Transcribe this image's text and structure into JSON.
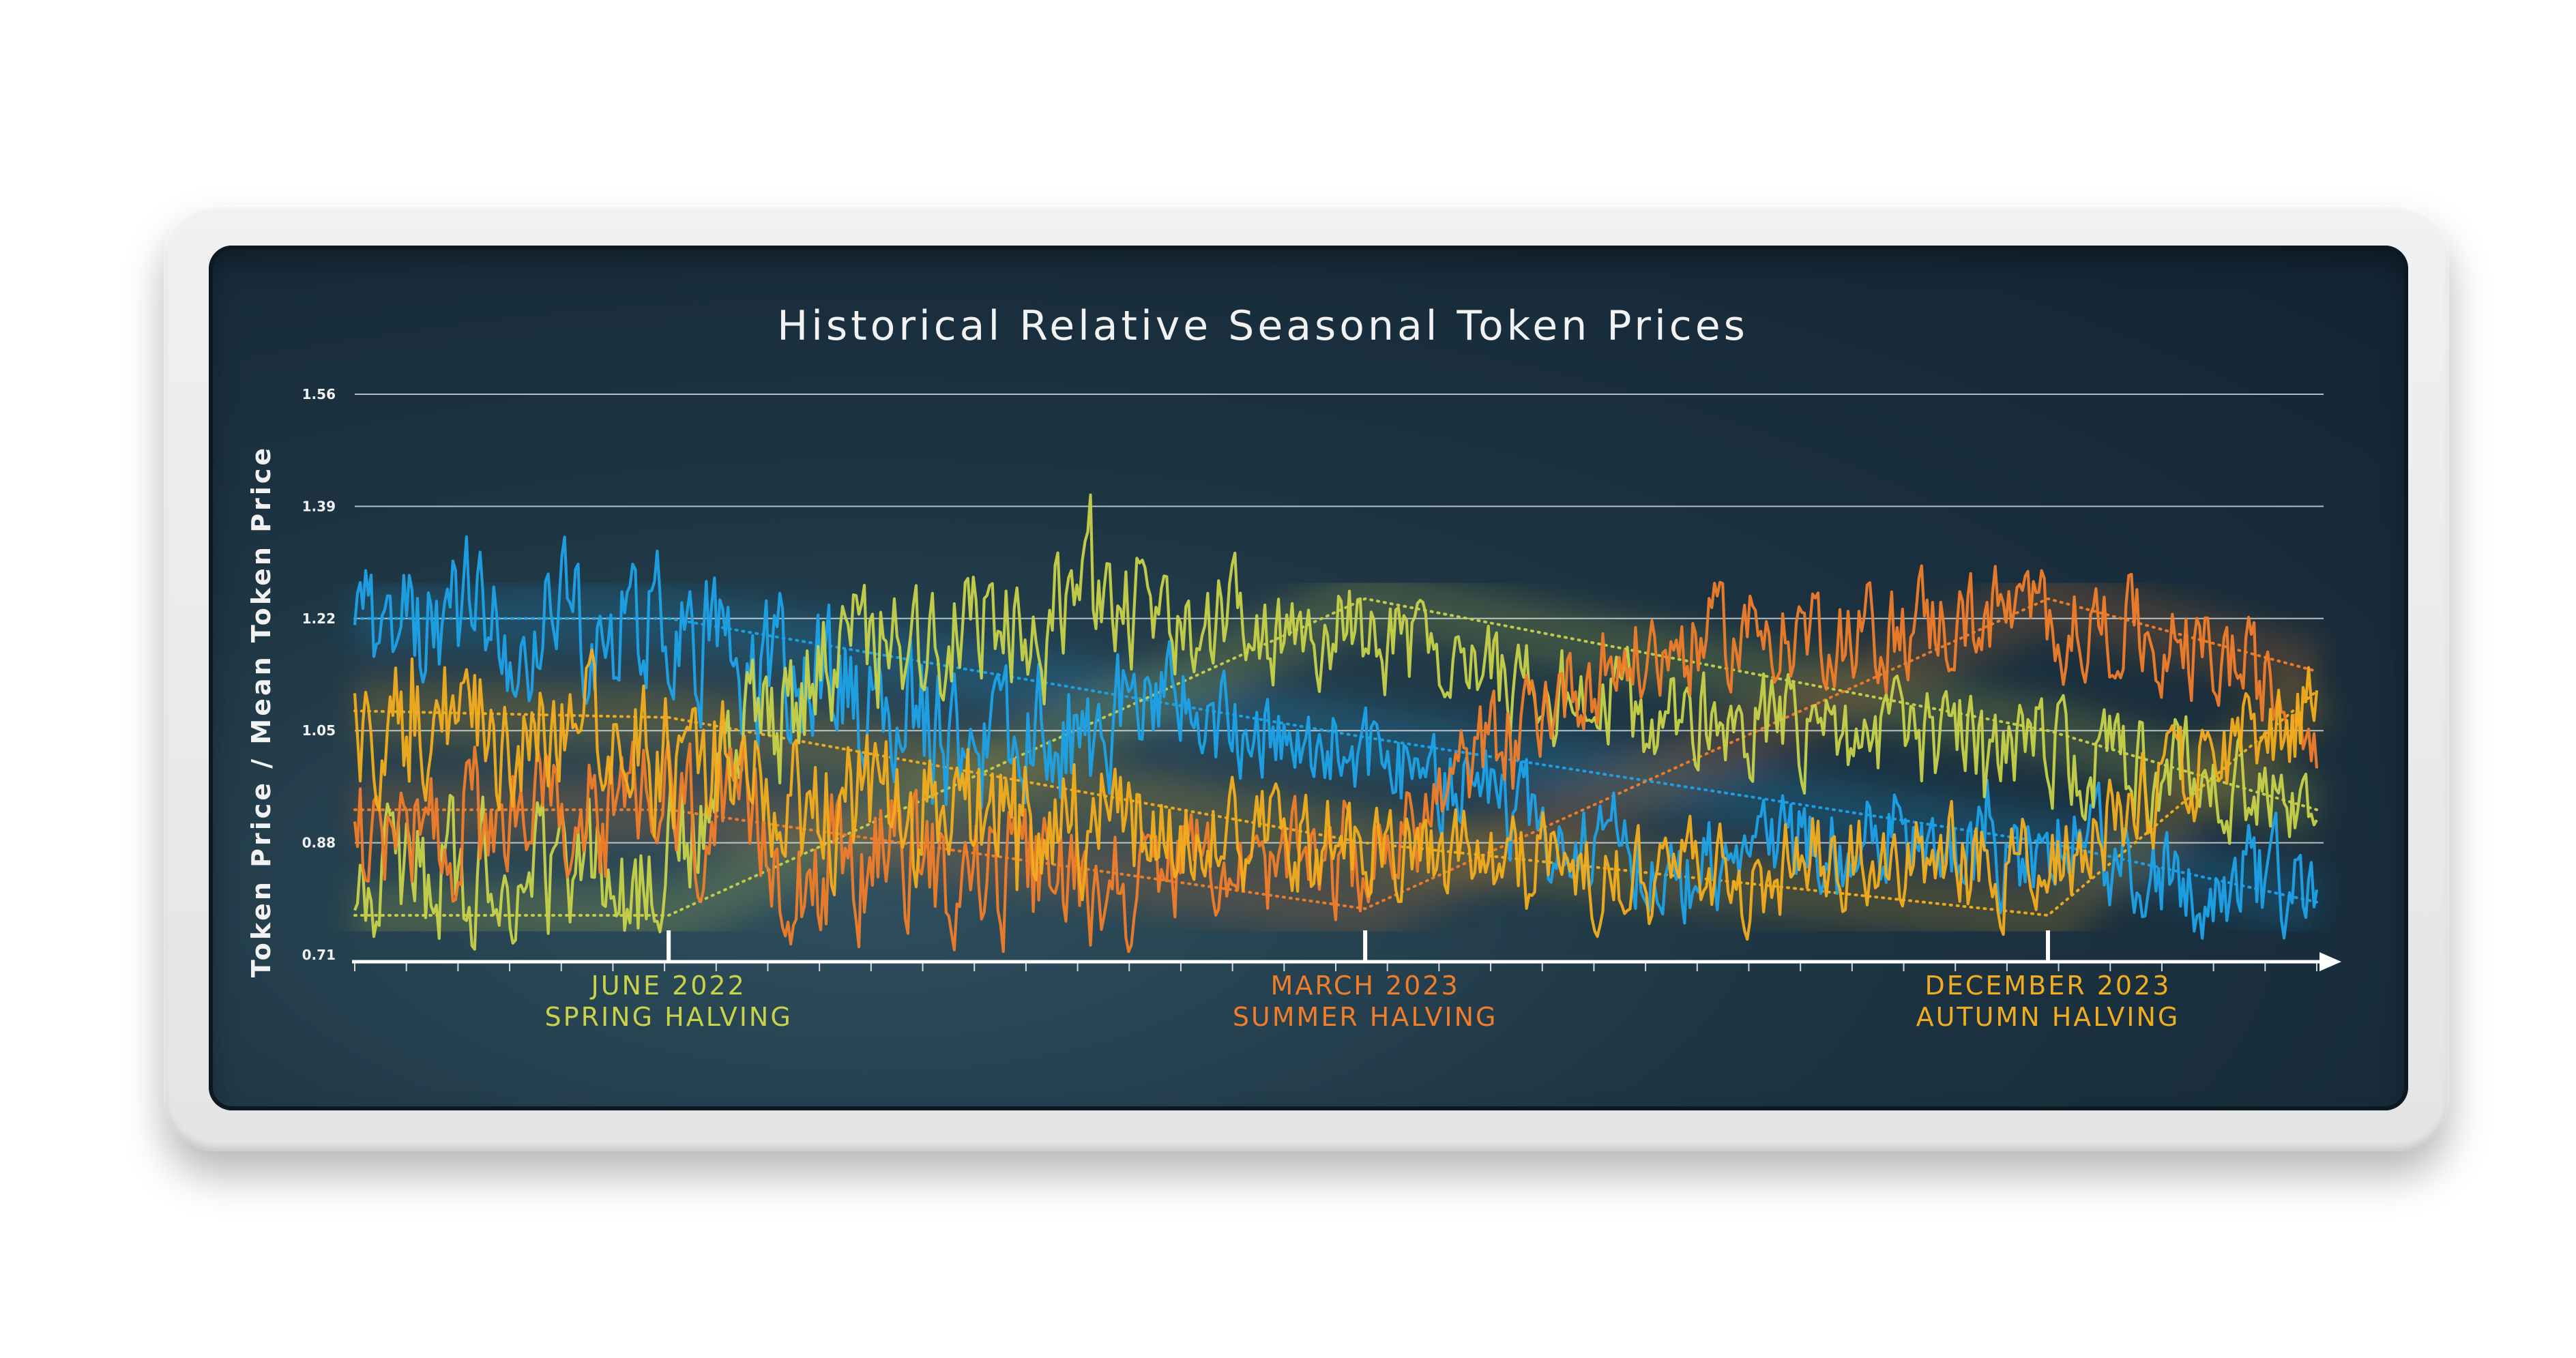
{
  "chart_data": {
    "type": "line",
    "title": "Historical Relative Seasonal Token Prices",
    "ylabel": "Token Price / Mean Token Price",
    "xlabel": "",
    "ylim": [
      0.71,
      1.56
    ],
    "yticks": [
      "0.71",
      "0.88",
      "1.05",
      "1.22",
      "1.39",
      "1.56"
    ],
    "x_range": [
      0,
      100
    ],
    "grid": true,
    "events": [
      {
        "x": 16,
        "date": "JUNE 2022",
        "label": "SPRING HALVING",
        "color": "#c8d24a"
      },
      {
        "x": 51.5,
        "date": "MARCH 2023",
        "label": "SUMMER HALVING",
        "color": "#f07d2a"
      },
      {
        "x": 86.3,
        "date": "DECEMBER 2023",
        "label": "AUTUMN HALVING",
        "color": "#f2ad1e"
      }
    ],
    "series": [
      {
        "color": "#1da2e8",
        "points": [
          [
            0,
            1.14
          ],
          [
            2,
            1.24
          ],
          [
            4,
            1.2
          ],
          [
            6,
            1.23
          ],
          [
            8,
            1.21
          ],
          [
            10,
            1.23
          ],
          [
            12,
            1.2
          ],
          [
            14,
            1.22
          ],
          [
            16,
            1.21
          ],
          [
            18,
            1.17
          ],
          [
            20,
            1.14
          ],
          [
            22,
            1.13
          ],
          [
            24,
            1.12
          ],
          [
            26,
            1.08
          ],
          [
            28,
            1.1
          ],
          [
            30,
            1.02
          ],
          [
            32,
            1.03
          ],
          [
            34,
            1.05
          ],
          [
            36,
            1.04
          ],
          [
            38,
            1.06
          ],
          [
            40,
            1.09
          ],
          [
            42,
            1.1
          ],
          [
            44,
            1.05
          ],
          [
            46,
            1.03
          ],
          [
            48,
            1.05
          ],
          [
            50,
            1.03
          ],
          [
            52,
            1.0
          ],
          [
            54,
            0.98
          ],
          [
            56,
            0.96
          ],
          [
            58,
            0.94
          ],
          [
            60,
            0.91
          ],
          [
            62,
            0.89
          ],
          [
            64,
            0.88
          ],
          [
            66,
            0.86
          ],
          [
            68,
            0.84
          ],
          [
            70,
            0.86
          ],
          [
            72,
            0.88
          ],
          [
            74,
            0.89
          ],
          [
            76,
            0.87
          ],
          [
            78,
            0.9
          ],
          [
            80,
            0.88
          ],
          [
            82,
            0.87
          ],
          [
            84,
            0.85
          ],
          [
            86,
            0.88
          ],
          [
            88,
            0.87
          ],
          [
            90,
            0.86
          ],
          [
            92,
            0.84
          ],
          [
            94,
            0.82
          ],
          [
            96,
            0.83
          ],
          [
            98,
            0.83
          ],
          [
            100,
            0.8
          ]
        ]
      },
      {
        "color": "#c8d24a",
        "points": [
          [
            0,
            0.84
          ],
          [
            2,
            0.82
          ],
          [
            4,
            0.83
          ],
          [
            6,
            0.84
          ],
          [
            8,
            0.86
          ],
          [
            10,
            0.81
          ],
          [
            12,
            0.83
          ],
          [
            14,
            0.82
          ],
          [
            16,
            0.85
          ],
          [
            18,
            0.95
          ],
          [
            20,
            1.03
          ],
          [
            22,
            1.07
          ],
          [
            24,
            1.13
          ],
          [
            26,
            1.17
          ],
          [
            28,
            1.2
          ],
          [
            30,
            1.21
          ],
          [
            32,
            1.19
          ],
          [
            34,
            1.2
          ],
          [
            36,
            1.22
          ],
          [
            38,
            1.21
          ],
          [
            40,
            1.22
          ],
          [
            42,
            1.21
          ],
          [
            44,
            1.22
          ],
          [
            46,
            1.21
          ],
          [
            48,
            1.2
          ],
          [
            50,
            1.21
          ],
          [
            52,
            1.18
          ],
          [
            54,
            1.17
          ],
          [
            56,
            1.16
          ],
          [
            58,
            1.12
          ],
          [
            60,
            1.11
          ],
          [
            62,
            1.1
          ],
          [
            64,
            1.09
          ],
          [
            66,
            1.07
          ],
          [
            68,
            1.08
          ],
          [
            70,
            1.07
          ],
          [
            72,
            1.06
          ],
          [
            74,
            1.05
          ],
          [
            76,
            1.04
          ],
          [
            78,
            1.05
          ],
          [
            80,
            1.03
          ],
          [
            82,
            1.04
          ],
          [
            84,
            1.02
          ],
          [
            86,
            1.03
          ],
          [
            88,
            1.01
          ],
          [
            90,
            1.0
          ],
          [
            92,
            0.99
          ],
          [
            94,
            0.98
          ],
          [
            96,
            0.97
          ],
          [
            98,
            0.96
          ],
          [
            100,
            0.94
          ]
        ]
      },
      {
        "color": "#f07d2a",
        "points": [
          [
            0,
            0.92
          ],
          [
            2,
            0.9
          ],
          [
            4,
            0.89
          ],
          [
            6,
            0.92
          ],
          [
            8,
            0.91
          ],
          [
            10,
            0.93
          ],
          [
            12,
            0.92
          ],
          [
            14,
            0.94
          ],
          [
            16,
            0.93
          ],
          [
            18,
            0.9
          ],
          [
            20,
            0.88
          ],
          [
            22,
            0.86
          ],
          [
            24,
            0.84
          ],
          [
            26,
            0.85
          ],
          [
            28,
            0.86
          ],
          [
            30,
            0.84
          ],
          [
            32,
            0.82
          ],
          [
            34,
            0.83
          ],
          [
            36,
            0.82
          ],
          [
            38,
            0.83
          ],
          [
            40,
            0.82
          ],
          [
            42,
            0.84
          ],
          [
            44,
            0.86
          ],
          [
            46,
            0.82
          ],
          [
            48,
            0.85
          ],
          [
            50,
            0.83
          ],
          [
            52,
            0.85
          ],
          [
            54,
            0.9
          ],
          [
            56,
            0.97
          ],
          [
            58,
            1.03
          ],
          [
            60,
            1.08
          ],
          [
            62,
            1.12
          ],
          [
            64,
            1.15
          ],
          [
            66,
            1.16
          ],
          [
            68,
            1.18
          ],
          [
            70,
            1.19
          ],
          [
            72,
            1.21
          ],
          [
            74,
            1.2
          ],
          [
            76,
            1.21
          ],
          [
            78,
            1.19
          ],
          [
            80,
            1.22
          ],
          [
            82,
            1.21
          ],
          [
            84,
            1.23
          ],
          [
            86,
            1.22
          ],
          [
            88,
            1.2
          ],
          [
            90,
            1.21
          ],
          [
            92,
            1.18
          ],
          [
            94,
            1.16
          ],
          [
            96,
            1.15
          ],
          [
            98,
            1.1
          ],
          [
            100,
            1.07
          ]
        ]
      },
      {
        "color": "#f2ad1e",
        "points": [
          [
            0,
            1.06
          ],
          [
            2,
            1.04
          ],
          [
            4,
            1.07
          ],
          [
            6,
            1.05
          ],
          [
            8,
            1.03
          ],
          [
            10,
            1.06
          ],
          [
            12,
            1.04
          ],
          [
            14,
            1.02
          ],
          [
            16,
            1.01
          ],
          [
            18,
            0.99
          ],
          [
            20,
            0.97
          ],
          [
            22,
            0.95
          ],
          [
            24,
            0.93
          ],
          [
            26,
            0.94
          ],
          [
            28,
            0.92
          ],
          [
            30,
            0.93
          ],
          [
            32,
            0.91
          ],
          [
            34,
            0.92
          ],
          [
            36,
            0.9
          ],
          [
            38,
            0.91
          ],
          [
            40,
            0.89
          ],
          [
            42,
            0.9
          ],
          [
            44,
            0.88
          ],
          [
            46,
            0.89
          ],
          [
            48,
            0.87
          ],
          [
            50,
            0.88
          ],
          [
            52,
            0.87
          ],
          [
            54,
            0.86
          ],
          [
            56,
            0.85
          ],
          [
            58,
            0.86
          ],
          [
            60,
            0.84
          ],
          [
            62,
            0.85
          ],
          [
            64,
            0.84
          ],
          [
            66,
            0.83
          ],
          [
            68,
            0.84
          ],
          [
            70,
            0.83
          ],
          [
            72,
            0.84
          ],
          [
            74,
            0.86
          ],
          [
            76,
            0.85
          ],
          [
            78,
            0.84
          ],
          [
            80,
            0.86
          ],
          [
            82,
            0.85
          ],
          [
            84,
            0.84
          ],
          [
            86,
            0.86
          ],
          [
            88,
            0.88
          ],
          [
            90,
            0.92
          ],
          [
            92,
            0.96
          ],
          [
            94,
            1.0
          ],
          [
            96,
            1.03
          ],
          [
            98,
            1.06
          ],
          [
            100,
            1.08
          ]
        ]
      }
    ],
    "trend_lines": [
      {
        "color": "#1da2e8",
        "points": [
          [
            0,
            1.22
          ],
          [
            16,
            1.22
          ],
          [
            51.5,
            1.04
          ],
          [
            86.3,
            0.88
          ],
          [
            100,
            0.79
          ]
        ]
      },
      {
        "color": "#c8d24a",
        "points": [
          [
            0,
            0.77
          ],
          [
            16,
            0.77
          ],
          [
            51.5,
            1.25
          ],
          [
            86.3,
            1.05
          ],
          [
            100,
            0.93
          ]
        ]
      },
      {
        "color": "#f07d2a",
        "points": [
          [
            0,
            0.93
          ],
          [
            16,
            0.93
          ],
          [
            51.5,
            0.78
          ],
          [
            86.3,
            1.25
          ],
          [
            100,
            1.14
          ]
        ]
      },
      {
        "color": "#f2ad1e",
        "points": [
          [
            0,
            1.08
          ],
          [
            16,
            1.07
          ],
          [
            51.5,
            0.88
          ],
          [
            86.3,
            0.77
          ],
          [
            100,
            1.11
          ]
        ]
      }
    ]
  }
}
